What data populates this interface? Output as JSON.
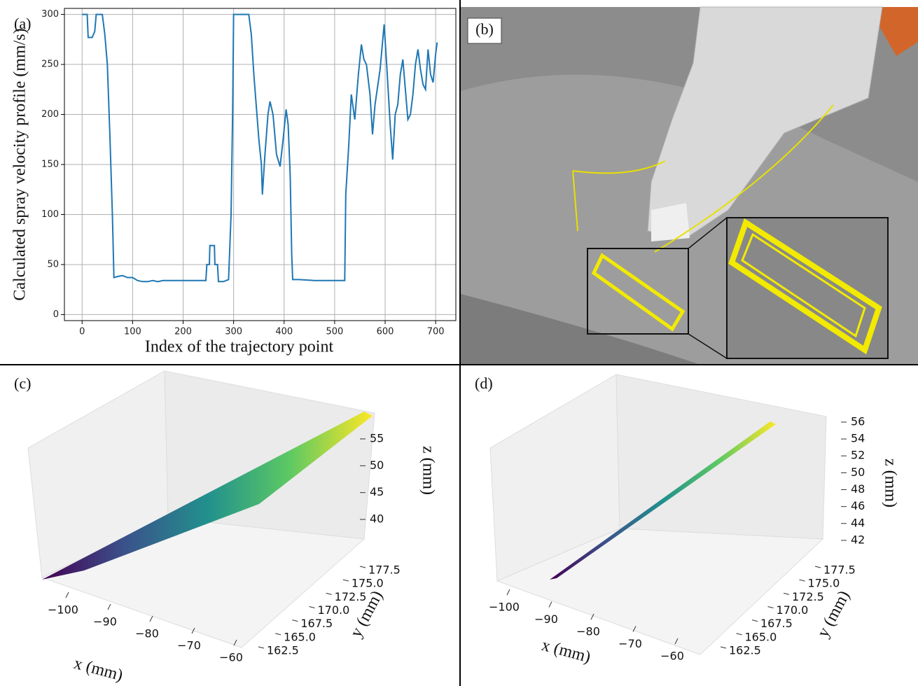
{
  "chart_data": [
    {
      "type": "line",
      "label": "(a)",
      "xlabel": "Index of the trajectory point",
      "ylabel": "Calculated spray velocity profile (mm/s)",
      "color": "#1f77b4",
      "grid": true,
      "xlim": [
        -35,
        740
      ],
      "ylim": [
        -6,
        306
      ],
      "xticks": [
        0,
        100,
        200,
        300,
        400,
        500,
        600,
        700
      ],
      "yticks": [
        0,
        50,
        100,
        150,
        200,
        250,
        300
      ],
      "x": [
        0,
        10,
        12,
        20,
        25,
        28,
        40,
        45,
        50,
        55,
        60,
        63,
        70,
        80,
        90,
        100,
        110,
        120,
        130,
        140,
        150,
        160,
        170,
        200,
        230,
        245,
        247,
        252,
        253,
        262,
        263,
        268,
        270,
        280,
        290,
        295,
        298,
        300,
        330,
        335,
        340,
        350,
        355,
        357,
        362,
        368,
        372,
        378,
        385,
        392,
        398,
        404,
        408,
        412,
        415,
        417,
        430,
        460,
        490,
        520,
        522,
        528,
        533,
        540,
        547,
        553,
        558,
        563,
        570,
        575,
        580,
        590,
        598,
        603,
        610,
        615,
        620,
        625,
        630,
        635,
        640,
        645,
        650,
        655,
        660,
        665,
        670,
        675,
        680,
        685,
        690,
        695,
        700,
        703
      ],
      "y": [
        300,
        300,
        277,
        277,
        283,
        300,
        300,
        280,
        250,
        180,
        100,
        37,
        38,
        39,
        37,
        37,
        34,
        33,
        33,
        34,
        33,
        34,
        34,
        34,
        34,
        34,
        50,
        50,
        69,
        69,
        50,
        50,
        33,
        33,
        35,
        100,
        200,
        300,
        300,
        280,
        240,
        175,
        150,
        120,
        160,
        200,
        213,
        200,
        160,
        148,
        175,
        205,
        190,
        140,
        60,
        35,
        35,
        34,
        34,
        34,
        120,
        170,
        220,
        195,
        240,
        270,
        255,
        250,
        220,
        180,
        210,
        245,
        290,
        250,
        190,
        155,
        200,
        210,
        240,
        255,
        225,
        195,
        200,
        220,
        250,
        265,
        245,
        230,
        225,
        265,
        240,
        232,
        260,
        272
      ]
    },
    {
      "type": "surface3d",
      "label": "(c)",
      "xlabel": "x (mm)",
      "ylabel": "y (mm)",
      "zlabel": "z (mm)",
      "xlim": [
        -105,
        -58
      ],
      "ylim": [
        161,
        179
      ],
      "zlim": [
        36,
        59
      ],
      "xticks": [
        {
          "value": -100,
          "label": "−100"
        },
        {
          "value": -90,
          "label": "−90"
        },
        {
          "value": -80,
          "label": "−80"
        },
        {
          "value": -70,
          "label": "−70"
        },
        {
          "value": -60,
          "label": "−60"
        }
      ],
      "yticks": [
        162.5,
        {
          "value": 165,
          "label": "165.0"
        },
        167.5,
        {
          "value": 170,
          "label": "170.0"
        },
        172.5,
        {
          "value": 175,
          "label": "175.0"
        },
        177.5
      ],
      "zticks": [
        40,
        45,
        50,
        55
      ]
    },
    {
      "type": "surface3d",
      "label": "(d)",
      "xlabel": "x (mm)",
      "ylabel": "y (mm)",
      "zlabel": "z (mm)",
      "xlim": [
        -105,
        -58
      ],
      "ylim": [
        161,
        179
      ],
      "zlim": [
        41,
        57
      ],
      "xticks": [
        {
          "value": -100,
          "label": "−100"
        },
        {
          "value": -90,
          "label": "−90"
        },
        {
          "value": -80,
          "label": "−80"
        },
        {
          "value": -70,
          "label": "−70"
        },
        {
          "value": -60,
          "label": "−60"
        }
      ],
      "yticks": [
        162.5,
        {
          "value": 165,
          "label": "165.0"
        },
        167.5,
        {
          "value": 170,
          "label": "170.0"
        },
        172.5,
        {
          "value": 175,
          "label": "175.0"
        },
        177.5
      ],
      "zticks": [
        42,
        44,
        46,
        48,
        50,
        52,
        54,
        56
      ]
    }
  ],
  "image_panel": {
    "label": "(b)"
  }
}
